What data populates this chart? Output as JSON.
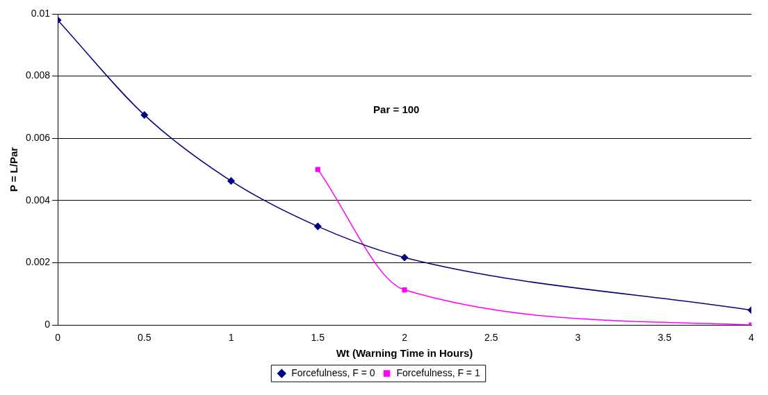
{
  "chart_data": {
    "type": "line",
    "xlabel": "Wt (Warning Time in Hours)",
    "ylabel": "P = L/Par",
    "xlim": [
      0,
      4
    ],
    "xticks": [
      0,
      0.5,
      1,
      1.5,
      2,
      2.5,
      3,
      3.5,
      4
    ],
    "ylim": [
      0,
      0.01
    ],
    "yticks": [
      0,
      0.002,
      0.004,
      0.006,
      0.008,
      0.01
    ],
    "grid": "y",
    "legend": "bottom",
    "annotations": [
      "Par = 100"
    ],
    "series": [
      {
        "name": "Forcefulness, F = 0",
        "color": "#000080",
        "marker": "diamond",
        "x": [
          0,
          0.5,
          1,
          1.5,
          2,
          4
        ],
        "values": [
          0.0098,
          0.00675,
          0.00463,
          0.00317,
          0.00217,
          0.00048
        ]
      },
      {
        "name": "Forcefulness, F = 1",
        "color": "#ff00ff",
        "marker": "square",
        "x": [
          1.5,
          2,
          4
        ],
        "values": [
          0.005,
          0.00113,
          0
        ]
      }
    ]
  }
}
